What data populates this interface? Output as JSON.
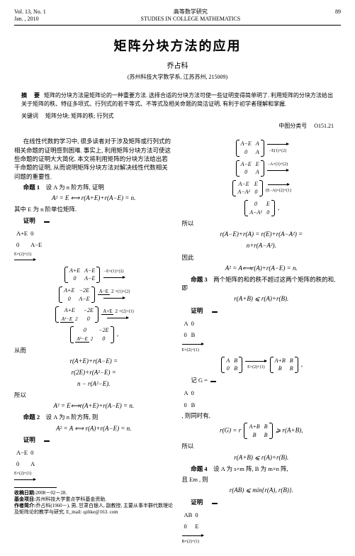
{
  "header": {
    "vol": "Vol. 13, No. 1",
    "date": "Jan. , 2010",
    "journal_cn": "高等数学研究",
    "journal_en": "STUDIES IN COLLEGE MATHEMATICS",
    "page": "89"
  },
  "title": "矩阵分块方法的应用",
  "author": "乔占科",
  "affiliation": "(苏州科技大学数学系, 江苏苏州, 215009)",
  "abstract_label": "摘   要",
  "abstract": "矩阵的分块方法是矩阵论的一种重要方法. 选择合适的分块方法可使一些证明变得简单明了. 利用矩阵的分块方法给出关于矩阵的秩、特征多项式、行列式的若干等式、不等式及相关命题的简洁证明, 有利于初学者理解和掌握.",
  "keywords_label": "关键词",
  "keywords": "矩阵分块; 矩阵的秩; 行列式",
  "classno_label": "中图分类号",
  "classno": "O151.21",
  "left": {
    "intro": "在线性代数的学习中, 很多读者对于涉及矩阵或行列式的相关命题的证明感到困难. 事实上, 利用矩阵分块方法可使这些命题的证明大大简化. 本文将利用矩阵的分块方法给出若干命题的证明, 从而说明矩阵分块方法对解决线性代数相关问题的重要性.",
    "prop1_label": "命题 1",
    "prop1": "设 A 为 n 阶方阵, 证明",
    "prop1_eq": "A² = E ⟺ r(A+E)+r(A−E) = n.",
    "prop1_note": "其中 E 为 n 阶单位矩阵.",
    "proof_label": "证明",
    "congmian": "从而",
    "congmian_eq1": "r(A+E)+r(A−E) =",
    "congmian_eq2": "r(2E)+r(A²−E) =",
    "congmian_eq3": "n − r(A²−E).",
    "suoyi": "所以",
    "suoyi_eq": "A² = E⟺r(A+E)+r(A−E) = n.",
    "prop2_label": "命题 2",
    "prop2": "设 A 为 n 阶方阵, 则",
    "prop2_eq": "A² = A ⟺ r(A)+r(A−E) = n.",
    "rowops": {
      "r1": "E×(2)+(1)",
      "r2": "−E×(1)+(2)",
      "r3": "A−E×(1)+(2)",
      "r4": "(A+E)×(2)+(1)",
      "frac2": "2"
    }
  },
  "right": {
    "rowops": {
      "r1": "−E(1)+(2)",
      "r2": "−A×(1)+(2)",
      "r3": "(E−A)×(2)+(1)"
    },
    "suoyi": "所以",
    "eq1a": "r(A−E)+r(A) = r(E)+r(A−A²) =",
    "eq1b": "n+r(A−A²).",
    "yinci": "因此",
    "eq2": "A² = A⟺r(A)+r(A−E) = n.",
    "prop3_label": "命题 3",
    "prop3": "两个矩阵的和的秩不超过这两个矩阵的秩的和, 即",
    "prop3_eq": "r(A+B) ⩽ r(A)+r(B).",
    "proof_label": "证明",
    "jig": "记 G =",
    "jig_tail": ", 则同时有,",
    "rg_eq": "r(G) = r",
    "rg_tail": " ⩾ r(A+B),",
    "suoyi2": "所以",
    "eq3": "r(A+B) ⩽ r(A)+r(B).",
    "prop4_label": "命题 4",
    "prop4": "设 A 为 s×m 阵, B 为 m×n 阵,",
    "prop4_b": "且 Em , 则",
    "prop4_eq": "r(AB) ⩽ min{r(A), r(B)}.",
    "rowop_last": "B×(2)+(1)"
  },
  "footnote": {
    "received_label": "收稿日期:",
    "received": "2008－02－28.",
    "fund_label": "基金项目:",
    "fund": "苏州科技大学重点学科基金资助.",
    "author_label": "作者简介:",
    "author_info": "乔占科(1960－), 男, 甘肃白银人, 副教授, 主要从事半群代数理论及矩阵论的教学与研究. E_mail: qzhke@163. com"
  }
}
